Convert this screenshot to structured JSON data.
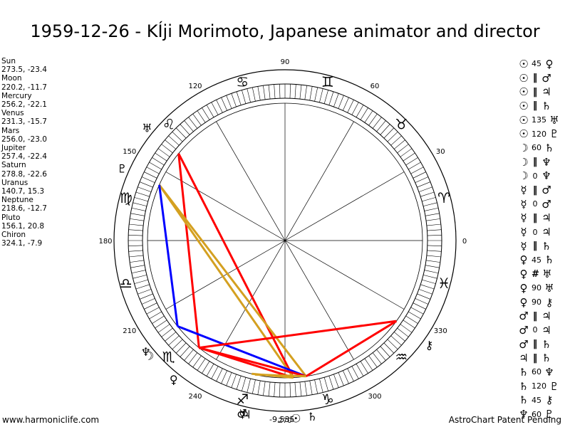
{
  "title": "1959-12-26 - KÍji Morimoto, Japanese animator and director",
  "planet_positions": [
    {
      "name": "Sun",
      "value": "273.5, -23.4"
    },
    {
      "name": "Moon",
      "value": "220.2, -11.7"
    },
    {
      "name": "Mercury",
      "value": "256.2, -22.1"
    },
    {
      "name": "Venus",
      "value": "231.3, -15.7"
    },
    {
      "name": "Mars",
      "value": "256.0, -23.0"
    },
    {
      "name": "Jupiter",
      "value": "257.4, -22.4"
    },
    {
      "name": "Saturn",
      "value": "278.8, -22.6"
    },
    {
      "name": "Uranus",
      "value": "140.7, 15.3"
    },
    {
      "name": "Neptune",
      "value": "218.6, -12.7"
    },
    {
      "name": "Pluto",
      "value": "156.1, 20.8"
    },
    {
      "name": "Chiron",
      "value": "324.1, -7.9"
    }
  ],
  "aspects": [
    {
      "p1": "☉",
      "asp": "45",
      "p2": "♀"
    },
    {
      "p1": "☉",
      "asp": "‖",
      "p2": "♂"
    },
    {
      "p1": "☉",
      "asp": "‖",
      "p2": "♃"
    },
    {
      "p1": "☉",
      "asp": "‖",
      "p2": "♄"
    },
    {
      "p1": "☉",
      "asp": "135",
      "p2": "♅"
    },
    {
      "p1": "☉",
      "asp": "120",
      "p2": "♇"
    },
    {
      "p1": "☽",
      "asp": "60",
      "p2": "♄"
    },
    {
      "p1": "☽",
      "asp": "‖",
      "p2": "♆"
    },
    {
      "p1": "☽",
      "asp": "0",
      "p2": "♆"
    },
    {
      "p1": "☿",
      "asp": "‖",
      "p2": "♂"
    },
    {
      "p1": "☿",
      "asp": "0",
      "p2": "♂"
    },
    {
      "p1": "☿",
      "asp": "‖",
      "p2": "♃"
    },
    {
      "p1": "☿",
      "asp": "0",
      "p2": "♃"
    },
    {
      "p1": "☿",
      "asp": "‖",
      "p2": "♄"
    },
    {
      "p1": "♀",
      "asp": "45",
      "p2": "♄"
    },
    {
      "p1": "♀",
      "asp": "#",
      "p2": "♅"
    },
    {
      "p1": "♀",
      "asp": "90",
      "p2": "♅"
    },
    {
      "p1": "♀",
      "asp": "90",
      "p2": "⚷"
    },
    {
      "p1": "♂",
      "asp": "‖",
      "p2": "♃"
    },
    {
      "p1": "♂",
      "asp": "0",
      "p2": "♃"
    },
    {
      "p1": "♂",
      "asp": "‖",
      "p2": "♄"
    },
    {
      "p1": "♃",
      "asp": "‖",
      "p2": "♄"
    },
    {
      "p1": "♄",
      "asp": "60",
      "p2": "♆"
    },
    {
      "p1": "♄",
      "asp": "120",
      "p2": "♇"
    },
    {
      "p1": "♄",
      "asp": "45",
      "p2": "⚷"
    },
    {
      "p1": "♆",
      "asp": "60",
      "p2": "♇"
    }
  ],
  "degree_labels": [
    "0",
    "30",
    "60",
    "90",
    "120",
    "150",
    "180",
    "210",
    "240",
    "270",
    "300",
    "330"
  ],
  "signs": [
    {
      "glyph": "♈",
      "name": "aries"
    },
    {
      "glyph": "♉",
      "name": "taurus"
    },
    {
      "glyph": "♊",
      "name": "gemini"
    },
    {
      "glyph": "♋",
      "name": "cancer"
    },
    {
      "glyph": "♌",
      "name": "leo"
    },
    {
      "glyph": "♍",
      "name": "virgo"
    },
    {
      "glyph": "♎",
      "name": "libra"
    },
    {
      "glyph": "♏",
      "name": "scorpio"
    },
    {
      "glyph": "♐",
      "name": "sagittarius"
    },
    {
      "glyph": "♑",
      "name": "capricorn"
    },
    {
      "glyph": "♒",
      "name": "aquarius"
    },
    {
      "glyph": "♓",
      "name": "pisces"
    }
  ],
  "planets": [
    {
      "name": "sun",
      "glyph": "☉",
      "lon": 273.5
    },
    {
      "name": "moon",
      "glyph": "☽",
      "lon": 220.2
    },
    {
      "name": "mercury",
      "glyph": "☿",
      "lon": 256.2
    },
    {
      "name": "venus",
      "glyph": "♀",
      "lon": 231.3
    },
    {
      "name": "mars",
      "glyph": "♂",
      "lon": 256.0
    },
    {
      "name": "jupiter",
      "glyph": "♃",
      "lon": 257.4
    },
    {
      "name": "saturn",
      "glyph": "♄",
      "lon": 278.8
    },
    {
      "name": "uranus",
      "glyph": "♅",
      "lon": 140.7
    },
    {
      "name": "neptune",
      "glyph": "♆",
      "lon": 218.6
    },
    {
      "name": "pluto",
      "glyph": "♇",
      "lon": 156.1
    },
    {
      "name": "chiron",
      "glyph": "⚷",
      "lon": 324.1
    }
  ],
  "aspect_lines": [
    {
      "from": "uranus",
      "to": "sun",
      "color": "#ff0000"
    },
    {
      "from": "uranus",
      "to": "venus",
      "color": "#ff0000"
    },
    {
      "from": "pluto",
      "to": "sun",
      "color": "#d4a020"
    },
    {
      "from": "pluto",
      "to": "saturn",
      "color": "#d4a020"
    },
    {
      "from": "pluto",
      "to": "neptune",
      "color": "#0000ff"
    },
    {
      "from": "neptune",
      "to": "saturn",
      "color": "#0000ff"
    },
    {
      "from": "venus",
      "to": "chiron",
      "color": "#ff0000"
    },
    {
      "from": "chiron",
      "to": "saturn",
      "color": "#ff0000"
    },
    {
      "from": "venus",
      "to": "sun",
      "color": "#ff0000"
    },
    {
      "from": "venus",
      "to": "saturn",
      "color": "#ff0000"
    },
    {
      "from": "mars",
      "to": "sun",
      "color": "#d4a020"
    },
    {
      "from": "jupiter",
      "to": "saturn",
      "color": "#d4a020"
    }
  ],
  "bottom_value": "-9,535",
  "footer": {
    "left": "www.harmoniclife.com",
    "right": "AstroChart Patent Pending"
  }
}
